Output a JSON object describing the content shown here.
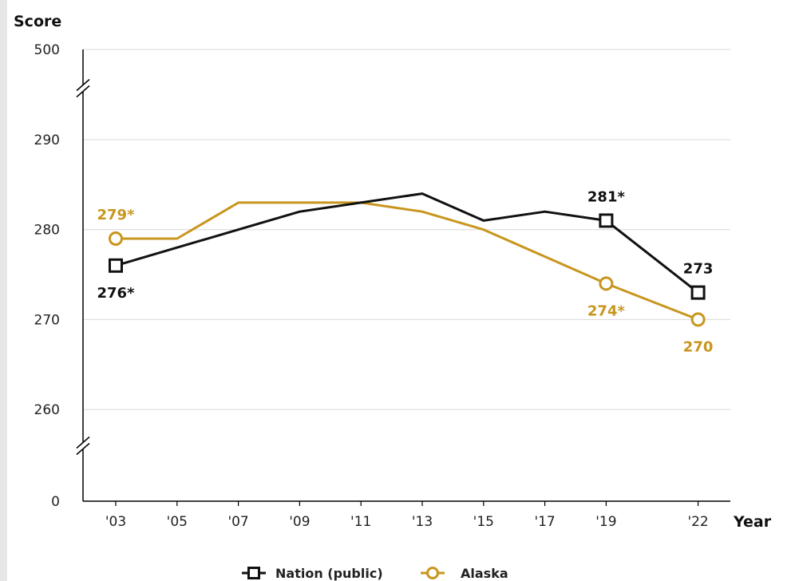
{
  "colors": {
    "nation": "#111111",
    "alaska": "#c8961e",
    "grid": "#d9d9d9",
    "axis": "#000000"
  },
  "chart_data": {
    "type": "line",
    "ylabel": "Score",
    "xlabel": "Year",
    "y_ticks": [
      "500",
      "290",
      "280",
      "270",
      "260",
      "0"
    ],
    "y_axis_break": true,
    "ylim": [
      255,
      295
    ],
    "categories": [
      "'03",
      "'05",
      "'07",
      "'09",
      "'11",
      "'13",
      "'15",
      "'17",
      "'19",
      "'22"
    ],
    "x_years": [
      2003,
      2005,
      2007,
      2009,
      2011,
      2013,
      2015,
      2017,
      2019,
      2022
    ],
    "grid": true,
    "legend_position": "bottom",
    "series": [
      {
        "name": "Nation (public)",
        "key": "nation",
        "marker": "square",
        "values": [
          276,
          278,
          280,
          282,
          283,
          284,
          281,
          282,
          281,
          273
        ],
        "labels": [
          {
            "index": 0,
            "text": "276*",
            "position": "below"
          },
          {
            "index": 8,
            "text": "281*",
            "position": "above"
          },
          {
            "index": 9,
            "text": "273",
            "position": "above"
          }
        ]
      },
      {
        "name": "Alaska",
        "key": "alaska",
        "marker": "circle",
        "values": [
          279,
          279,
          283,
          283,
          283,
          282,
          280,
          277,
          274,
          270
        ],
        "labels": [
          {
            "index": 0,
            "text": "279*",
            "position": "above"
          },
          {
            "index": 8,
            "text": "274*",
            "position": "below"
          },
          {
            "index": 9,
            "text": "270",
            "position": "below"
          }
        ]
      }
    ]
  }
}
